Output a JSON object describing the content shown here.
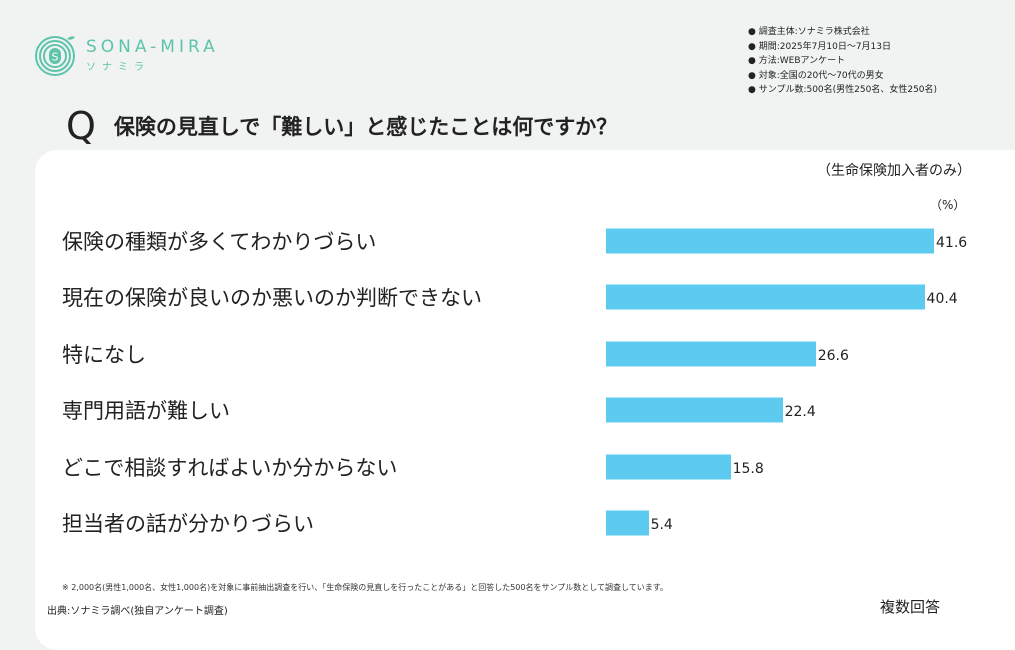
{
  "logo": {
    "en": "SONA-MIRA",
    "ja": "ソナミラ",
    "mark": "S"
  },
  "info": [
    "調査主体:ソナミラ株式会社",
    "期間:2025年7月10日～7月13日",
    "方法:WEBアンケート",
    "対象:全国の20代～70代の男女",
    "サンプル数:500名(男性250名、女性250名)"
  ],
  "question": {
    "mark": "Q",
    "text": "保険の見直しで「難しい」と感じたことは何ですか？"
  },
  "subtitle": "（生命保険加入者のみ）",
  "colors": {
    "bar": "#5ccbef",
    "logo": "#5cc4a8"
  },
  "chart_data": {
    "type": "bar",
    "orientation": "horizontal",
    "unit": "（%）",
    "categories": [
      "保険の種類が多くてわかりづらい",
      "現在の保険が良いのか悪いのか判断できない",
      "特になし",
      "専門用語が難しい",
      "どこで相談すればよいか分からない",
      "担当者の話が分かりづらい"
    ],
    "values": [
      41.6,
      40.4,
      26.6,
      22.4,
      15.8,
      5.4
    ],
    "value_labels": [
      "41.6",
      "40.4",
      "26.6",
      "22.4",
      "15.8",
      "5.4"
    ],
    "grid": false
  },
  "note": "※ 2,000名(男性1,000名、女性1,000名)を対象に事前抽出調査を行い、「生命保険の見直しを行ったことがある」と回答した500名をサンプル数として調査しています。",
  "source": "出典:ソナミラ調べ(独自アンケート調査)",
  "multiple": "複数回答"
}
